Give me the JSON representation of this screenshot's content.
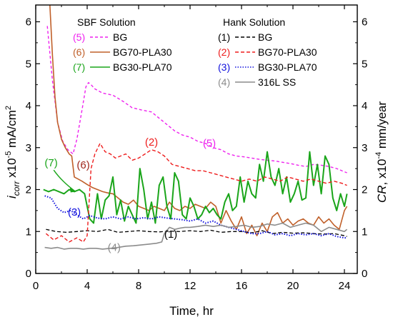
{
  "chart_data": {
    "type": "line",
    "xlabel": "Time, hr",
    "ylabel_left": {
      "main": "i",
      "sub": "corr",
      "rest1": " x10",
      "sup": "-5",
      "rest2": " mA/cm",
      "sup2": "2"
    },
    "ylabel_right": {
      "main": "CR",
      "rest1": ", x10",
      "sup": "-4",
      "rest2": " mm/year"
    },
    "xlim": [
      0,
      25
    ],
    "ylim": [
      0,
      6.4
    ],
    "ylim_right": [
      0,
      6.4
    ],
    "x_ticks": [
      "0",
      "4",
      "8",
      "12",
      "16",
      "20",
      "24"
    ],
    "y_ticks": [
      "0",
      "1",
      "2",
      "3",
      "4",
      "5",
      "6"
    ],
    "y_ticks_right": [
      "0",
      "1",
      "2",
      "3",
      "4",
      "5",
      "6"
    ],
    "legend_groups": [
      {
        "title": "SBF Solution",
        "entries": [
          {
            "num": "(5)",
            "label": "BG",
            "color": "#ee22ee",
            "dash": "4,3"
          },
          {
            "num": "(6)",
            "label": "BG70-PLA30",
            "color": "#c0602a",
            "dash": ""
          },
          {
            "num": "(7)",
            "label": "BG30-PLA70",
            "color": "#1aa51a",
            "dash": ""
          }
        ]
      },
      {
        "title": "Hank Solution",
        "entries": [
          {
            "num": "(1)",
            "label": "BG",
            "color": "#000000",
            "dash": "5,3"
          },
          {
            "num": "(2)",
            "label": "BG70-PLA30",
            "color": "#ee1c1c",
            "dash": "5,3"
          },
          {
            "num": "(3)",
            "label": "BG30-PLA70",
            "color": "#1010dd",
            "dash": "1.5,2"
          },
          {
            "num": "(4)",
            "label": "316L SS",
            "color": "#8c8c8c",
            "dash": ""
          }
        ]
      }
    ],
    "annotations": [
      {
        "text": "(5)",
        "color": "#ee22ee",
        "x": 13.5,
        "y": 3.02
      },
      {
        "text": "(2)",
        "color": "#ee1c1c",
        "x": 9.0,
        "y": 3.05
      },
      {
        "text": "(6)",
        "color": "#a0281e",
        "x": 3.7,
        "y": 2.5
      },
      {
        "text": "(7)",
        "color": "#1aa51a",
        "x": 1.2,
        "y": 2.55
      },
      {
        "text": "(3)",
        "color": "#1010dd",
        "x": 3.0,
        "y": 1.38
      },
      {
        "text": "(1)",
        "color": "#000000",
        "x": 10.5,
        "y": 0.85
      },
      {
        "text": "(4)",
        "color": "#8c8c8c",
        "x": 6.1,
        "y": 0.54
      }
    ],
    "series": [
      {
        "key": "5",
        "color": "#ee22ee",
        "dash": "4,3",
        "width": 1.4,
        "x": [
          0.9,
          1.3,
          1.7,
          2.1,
          2.5,
          2.9,
          3.2,
          3.6,
          3.9,
          4.1,
          4.3,
          4.6,
          5.2,
          6.0,
          6.8,
          7.5,
          8.2,
          9.0,
          9.6,
          10.2,
          10.8,
          11.4,
          12.0,
          12.6,
          13.2,
          13.8,
          14.4,
          15.0,
          15.6,
          16.2,
          16.8,
          17.4,
          18.0,
          18.6,
          19.2,
          19.8,
          20.4,
          21.0,
          21.6,
          22.2,
          22.8,
          23.4,
          23.8,
          24.2
        ],
        "y": [
          5.9,
          4.6,
          3.6,
          3.15,
          2.95,
          2.85,
          3.2,
          3.9,
          4.45,
          4.55,
          4.5,
          4.4,
          4.3,
          4.25,
          4.1,
          3.95,
          3.9,
          3.85,
          3.7,
          3.55,
          3.4,
          3.3,
          3.25,
          3.15,
          3.1,
          3.0,
          2.95,
          2.85,
          2.8,
          2.78,
          2.75,
          2.72,
          2.7,
          2.68,
          2.65,
          2.62,
          2.58,
          2.55,
          2.6,
          2.58,
          2.55,
          2.5,
          2.45,
          2.4
        ]
      },
      {
        "key": "6",
        "color": "#c0602a",
        "dash": "",
        "width": 1.6,
        "x": [
          1.1,
          1.3,
          1.5,
          1.7,
          2.0,
          2.3,
          2.6,
          2.8,
          3.0,
          3.3,
          3.6,
          4.0,
          4.4,
          4.8,
          5.2,
          5.6,
          6.0,
          6.4,
          6.8,
          7.2,
          7.6,
          8.0,
          8.4,
          8.8,
          9.2,
          9.6,
          10.0,
          10.4,
          10.8,
          11.2,
          11.6,
          12.0,
          12.4,
          12.8,
          13.2,
          13.6,
          14.0,
          14.4,
          14.8,
          15.2,
          15.6,
          16.0,
          16.4,
          16.8,
          17.2,
          17.6,
          18.0,
          18.4,
          18.8,
          19.2,
          19.6,
          20.0,
          20.4,
          20.8,
          21.2,
          21.6,
          22.0,
          22.4,
          22.8,
          23.2,
          23.6,
          24.0,
          24.2
        ],
        "y": [
          6.4,
          5.2,
          4.2,
          3.6,
          3.2,
          3.0,
          2.85,
          2.8,
          2.3,
          2.25,
          2.2,
          2.12,
          2.05,
          2.0,
          1.95,
          1.92,
          1.9,
          1.8,
          1.7,
          1.65,
          1.75,
          1.6,
          1.55,
          1.5,
          1.6,
          1.55,
          1.5,
          1.7,
          1.55,
          1.5,
          1.6,
          1.55,
          1.65,
          1.6,
          1.55,
          1.7,
          1.6,
          1.2,
          1.5,
          1.25,
          1.05,
          1.35,
          0.95,
          1.15,
          0.9,
          1.2,
          1.0,
          1.35,
          1.45,
          1.2,
          1.3,
          1.15,
          1.25,
          1.3,
          1.2,
          1.15,
          1.35,
          1.2,
          1.3,
          1.15,
          1.05,
          1.5,
          1.6
        ]
      },
      {
        "key": "7",
        "color": "#1aa51a",
        "dash": "",
        "width": 2.0,
        "x": [
          0.6,
          1.0,
          1.4,
          1.8,
          2.2,
          2.6,
          3.0,
          3.4,
          3.8,
          4.2,
          4.5,
          4.8,
          5.1,
          5.4,
          5.7,
          6.0,
          6.3,
          6.6,
          6.9,
          7.2,
          7.5,
          7.8,
          8.1,
          8.4,
          8.7,
          9.0,
          9.3,
          9.6,
          9.9,
          10.2,
          10.5,
          10.8,
          11.1,
          11.4,
          11.7,
          12.0,
          12.3,
          12.6,
          12.9,
          13.2,
          13.5,
          13.8,
          14.1,
          14.4,
          14.7,
          15.0,
          15.3,
          15.6,
          15.9,
          16.2,
          16.5,
          16.8,
          17.1,
          17.4,
          17.7,
          18.0,
          18.3,
          18.6,
          18.9,
          19.2,
          19.5,
          19.8,
          20.1,
          20.4,
          20.7,
          21.0,
          21.3,
          21.6,
          21.9,
          22.2,
          22.5,
          22.8,
          23.1,
          23.4,
          23.7,
          24.0,
          24.2
        ],
        "y": [
          2.0,
          1.95,
          2.0,
          1.95,
          1.9,
          2.0,
          1.95,
          2.0,
          1.9,
          1.3,
          1.2,
          1.9,
          1.3,
          1.75,
          1.85,
          2.3,
          1.4,
          1.75,
          1.25,
          1.6,
          1.4,
          1.2,
          2.5,
          2.0,
          1.3,
          1.7,
          1.2,
          2.1,
          2.3,
          1.6,
          1.3,
          2.4,
          2.2,
          1.4,
          1.3,
          1.8,
          1.6,
          1.3,
          1.4,
          1.6,
          1.45,
          1.55,
          1.4,
          1.3,
          1.7,
          1.9,
          1.5,
          1.6,
          2.3,
          1.7,
          2.2,
          1.9,
          1.8,
          2.6,
          2.2,
          2.9,
          2.3,
          2.1,
          2.5,
          1.9,
          2.3,
          1.7,
          1.9,
          2.2,
          1.75,
          1.8,
          2.9,
          2.1,
          2.6,
          1.9,
          2.8,
          2.6,
          1.8,
          1.5,
          1.9,
          1.6,
          1.9
        ]
      },
      {
        "key": "1",
        "color": "#000000",
        "dash": "5,3",
        "width": 1.3,
        "x": [
          0.8,
          1.6,
          2.4,
          3.2,
          4.0,
          4.8,
          5.6,
          6.4,
          7.2,
          8.0,
          8.8,
          9.6,
          10.4,
          11.2,
          12.0,
          12.8,
          13.6,
          14.4,
          15.2,
          16.0,
          16.8,
          17.6,
          18.4,
          19.2,
          20.0,
          20.8,
          21.6,
          22.4,
          23.2,
          24.0,
          24.2
        ],
        "y": [
          1.05,
          1.0,
          0.98,
          1.0,
          1.02,
          1.0,
          1.05,
          0.98,
          1.0,
          1.02,
          1.0,
          0.99,
          1.01,
          1.0,
          1.02,
          1.0,
          1.03,
          0.98,
          1.0,
          1.0,
          0.97,
          1.02,
          0.95,
          0.98,
          0.96,
          0.97,
          0.95,
          0.94,
          0.95,
          0.9,
          0.88
        ]
      },
      {
        "key": "2",
        "color": "#ee1c1c",
        "dash": "5,3",
        "width": 1.4,
        "x": [
          0.8,
          1.4,
          2.0,
          2.6,
          3.2,
          3.7,
          4.0,
          4.3,
          4.6,
          5.0,
          5.4,
          5.8,
          6.2,
          6.6,
          7.0,
          7.5,
          8.0,
          8.5,
          9.0,
          9.5,
          10.0,
          10.6,
          11.2,
          11.8,
          12.4,
          13.0,
          13.6,
          14.2,
          14.8,
          15.4,
          16.0,
          16.6,
          17.2,
          17.8,
          18.4,
          19.0,
          19.6,
          20.2,
          20.8,
          21.4,
          22.0,
          22.6,
          23.2,
          23.8,
          24.2
        ],
        "y": [
          0.95,
          0.8,
          0.9,
          0.75,
          0.85,
          0.75,
          0.9,
          2.5,
          2.85,
          3.1,
          2.9,
          2.85,
          2.75,
          2.8,
          2.85,
          2.7,
          2.75,
          2.85,
          2.95,
          2.9,
          2.8,
          2.6,
          2.55,
          2.5,
          2.45,
          2.45,
          2.4,
          2.35,
          2.3,
          2.25,
          2.2,
          2.25,
          2.2,
          2.3,
          2.25,
          2.2,
          2.3,
          2.25,
          2.2,
          2.25,
          2.2,
          2.15,
          2.2,
          2.15,
          2.1
        ]
      },
      {
        "key": "3",
        "color": "#1010dd",
        "dash": "1.5,2",
        "width": 2.0,
        "x": [
          0.7,
          1.2,
          1.7,
          2.2,
          2.7,
          3.2,
          3.7,
          4.2,
          4.8,
          5.4,
          6.0,
          6.6,
          7.2,
          7.8,
          8.4,
          9.0,
          9.6,
          10.2,
          10.8,
          11.4,
          12.0,
          12.6,
          13.2,
          13.8,
          14.4,
          15.0,
          15.6,
          16.2,
          16.8,
          17.4,
          18.0,
          18.6,
          19.2,
          19.8,
          20.4,
          21.0,
          21.6,
          22.2,
          22.8,
          23.4,
          24.0,
          24.2
        ],
        "y": [
          1.85,
          1.8,
          1.55,
          1.45,
          1.5,
          1.4,
          1.3,
          1.38,
          1.32,
          1.3,
          1.35,
          1.3,
          1.35,
          1.3,
          1.33,
          1.3,
          1.35,
          1.32,
          1.3,
          1.28,
          1.25,
          1.3,
          1.2,
          1.25,
          1.15,
          1.1,
          1.05,
          1.0,
          0.95,
          0.95,
          1.0,
          0.92,
          0.95,
          0.9,
          0.95,
          0.92,
          0.95,
          0.9,
          0.95,
          0.88,
          0.85,
          0.85
        ]
      },
      {
        "key": "4",
        "color": "#8c8c8c",
        "dash": "",
        "width": 1.6,
        "x": [
          0.7,
          1.2,
          1.7,
          2.2,
          2.7,
          3.2,
          3.7,
          4.2,
          4.7,
          5.2,
          5.8,
          6.4,
          7.0,
          7.6,
          8.2,
          8.8,
          9.4,
          9.8,
          10.0,
          10.4,
          10.8,
          11.2,
          11.6,
          12.0,
          12.6,
          13.2,
          13.8,
          14.4,
          15.0,
          15.6,
          16.2,
          16.8,
          17.4,
          18.0,
          18.6,
          19.2,
          19.8,
          20.4,
          21.0,
          21.6,
          22.2,
          22.8,
          23.4,
          24.0,
          24.2
        ],
        "y": [
          0.62,
          0.6,
          0.62,
          0.58,
          0.6,
          0.6,
          0.58,
          0.6,
          0.6,
          0.58,
          0.6,
          0.62,
          0.65,
          0.66,
          0.68,
          0.7,
          0.72,
          0.75,
          0.95,
          1.1,
          1.05,
          1.08,
          1.1,
          1.1,
          1.12,
          1.15,
          1.12,
          1.15,
          1.1,
          1.12,
          1.15,
          1.1,
          1.12,
          1.18,
          1.15,
          1.2,
          1.1,
          1.15,
          1.2,
          1.15,
          1.0,
          1.1,
          1.05,
          1.0,
          1.05
        ]
      }
    ]
  }
}
